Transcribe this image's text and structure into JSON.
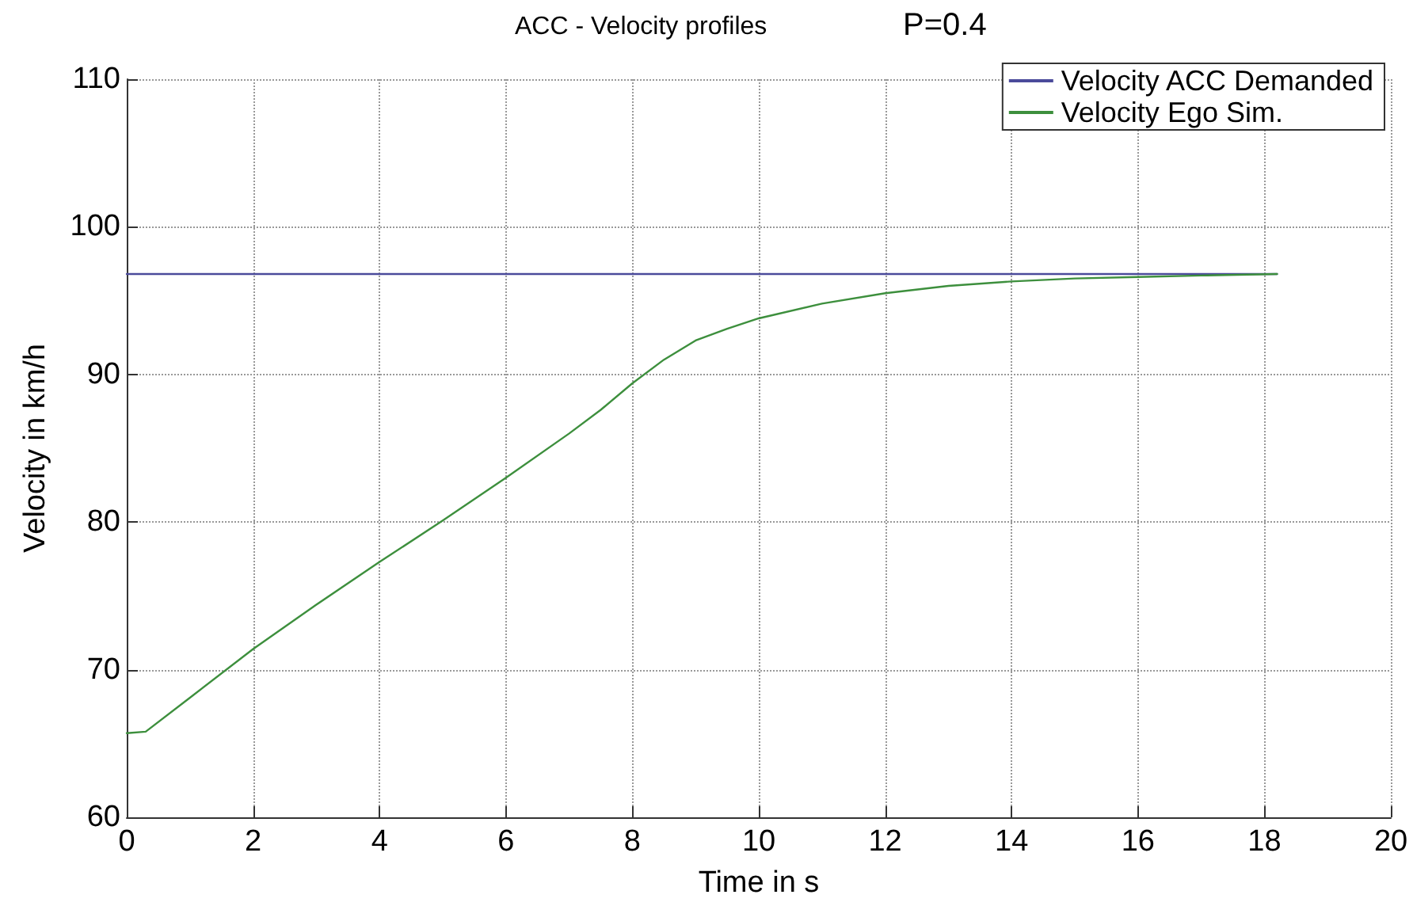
{
  "chart_data": {
    "type": "line",
    "title": "ACC - Velocity profiles",
    "subtitle": "P=0.4",
    "xlabel": "Time in s",
    "ylabel": "Velocity in km/h",
    "xlim": [
      0,
      20
    ],
    "xticks": [
      0,
      2,
      4,
      6,
      8,
      10,
      12,
      14,
      16,
      18,
      20
    ],
    "ylim": [
      60,
      110
    ],
    "yticks": [
      60,
      70,
      80,
      90,
      100,
      110
    ],
    "grid": true,
    "legend": "top right",
    "marker": "none",
    "line_style": "solid",
    "series": [
      {
        "name": "Velocity ACC Demanded",
        "color": "#4b4b9b",
        "x": [
          0,
          18.2
        ],
        "values": [
          96.8,
          96.8
        ]
      },
      {
        "name": "Velocity Ego Sim.",
        "color": "#3d8f3d",
        "x": [
          0,
          0.3,
          1,
          2,
          3,
          4,
          5,
          6,
          7,
          7.5,
          8,
          8.5,
          9,
          9.5,
          10,
          11,
          12,
          13,
          14,
          15,
          16,
          17,
          18.2
        ],
        "values": [
          65.7,
          65.8,
          68.1,
          71.4,
          74.4,
          77.3,
          80.1,
          83.0,
          86.0,
          87.6,
          89.4,
          91.0,
          92.3,
          93.1,
          93.8,
          94.8,
          95.5,
          96.0,
          96.3,
          96.5,
          96.6,
          96.7,
          96.8
        ]
      }
    ]
  }
}
